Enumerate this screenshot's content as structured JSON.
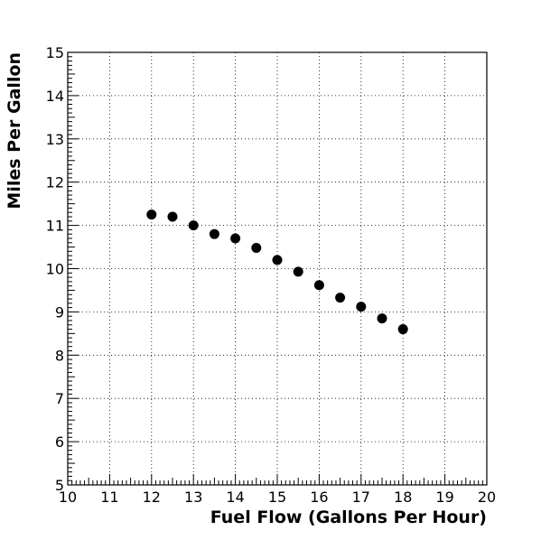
{
  "chart_data": {
    "type": "scatter",
    "title": "",
    "xlabel": "Fuel Flow (Gallons Per Hour)",
    "ylabel": "Miles Per Gallon",
    "xlim": [
      10,
      20
    ],
    "ylim": [
      5,
      15
    ],
    "x_ticks": [
      "10",
      "11",
      "12",
      "13",
      "14",
      "15",
      "16",
      "17",
      "18",
      "19",
      "20"
    ],
    "y_ticks": [
      "5",
      "6",
      "7",
      "8",
      "9",
      "10",
      "11",
      "12",
      "13",
      "14",
      "15"
    ],
    "grid": true,
    "series": [
      {
        "x": [
          12,
          12.5,
          13,
          13.5,
          14,
          14.5,
          15,
          15.5,
          16,
          16.5,
          17,
          17.5,
          18
        ],
        "y": [
          11.25,
          11.2,
          11.0,
          10.8,
          10.7,
          10.48,
          10.2,
          9.93,
          9.62,
          9.33,
          9.12,
          8.85,
          8.6
        ]
      }
    ],
    "marker_color": "#000000"
  }
}
